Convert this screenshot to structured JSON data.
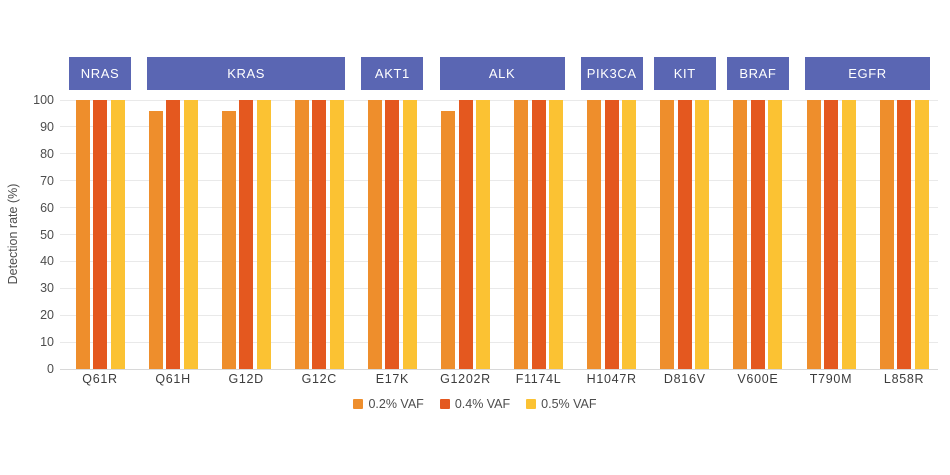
{
  "chart_data": {
    "type": "bar",
    "title": "",
    "xlabel": "",
    "ylabel": "Detection rate (%)",
    "ylim": [
      0,
      100
    ],
    "yticks": [
      0,
      10,
      20,
      30,
      40,
      50,
      60,
      70,
      80,
      90,
      100
    ],
    "grid": true,
    "legend_position": "bottom",
    "categories": [
      "Q61R",
      "Q61H",
      "G12D",
      "G12C",
      "E17K",
      "G1202R",
      "F1174L",
      "H1047R",
      "D816V",
      "V600E",
      "T790M",
      "L858R"
    ],
    "gene_groups": [
      {
        "label": "NRAS",
        "start": 0,
        "end": 0
      },
      {
        "label": "KRAS",
        "start": 1,
        "end": 3
      },
      {
        "label": "AKT1",
        "start": 4,
        "end": 4
      },
      {
        "label": "ALK",
        "start": 5,
        "end": 6
      },
      {
        "label": "PIK3CA",
        "start": 7,
        "end": 7
      },
      {
        "label": "KIT",
        "start": 8,
        "end": 8
      },
      {
        "label": "BRAF",
        "start": 9,
        "end": 9
      },
      {
        "label": "EGFR",
        "start": 10,
        "end": 11
      }
    ],
    "series": [
      {
        "name": "0.2% VAF",
        "color": "#ee8e2c",
        "values": [
          100,
          96,
          96,
          100,
          100,
          96,
          100,
          100,
          100,
          100,
          100,
          100
        ]
      },
      {
        "name": "0.4% VAF",
        "color": "#e4581f",
        "values": [
          100,
          100,
          100,
          100,
          100,
          100,
          100,
          100,
          100,
          100,
          100,
          100
        ]
      },
      {
        "name": "0.5% VAF",
        "color": "#fbc233",
        "values": [
          100,
          100,
          100,
          100,
          100,
          100,
          100,
          100,
          100,
          100,
          100,
          100
        ]
      }
    ]
  },
  "colors": {
    "gene_box": "#5a66b3",
    "gene_box_text": "#ffffff",
    "grid_line": "#e9e9e9",
    "axis_line": "#d8d8d8",
    "tick_text": "#4d4d4d",
    "category_text": "#3d3d3d"
  }
}
